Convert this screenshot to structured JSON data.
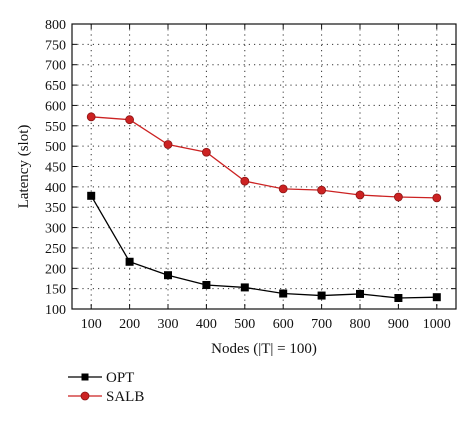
{
  "chart_data": {
    "type": "line",
    "xlabel": "Nodes (|T| = 100)",
    "ylabel": "Latency (slot)",
    "x": [
      100,
      200,
      300,
      400,
      500,
      600,
      700,
      800,
      900,
      1000
    ],
    "xlim": [
      50,
      1050
    ],
    "ylim": [
      100,
      800
    ],
    "yticks": [
      100,
      150,
      200,
      250,
      300,
      350,
      400,
      450,
      500,
      550,
      600,
      650,
      700,
      750,
      800
    ],
    "grid": true,
    "legend_position": "bottom-left, below plot",
    "series": [
      {
        "name": "OPT",
        "color": "#000000",
        "marker": "square",
        "values": [
          378,
          216,
          183,
          159,
          153,
          138,
          133,
          137,
          127,
          129
        ]
      },
      {
        "name": "SALB",
        "color": "#cc2222",
        "marker": "circle",
        "values": [
          572,
          565,
          504,
          485,
          414,
          395,
          392,
          380,
          375,
          373
        ]
      }
    ]
  }
}
